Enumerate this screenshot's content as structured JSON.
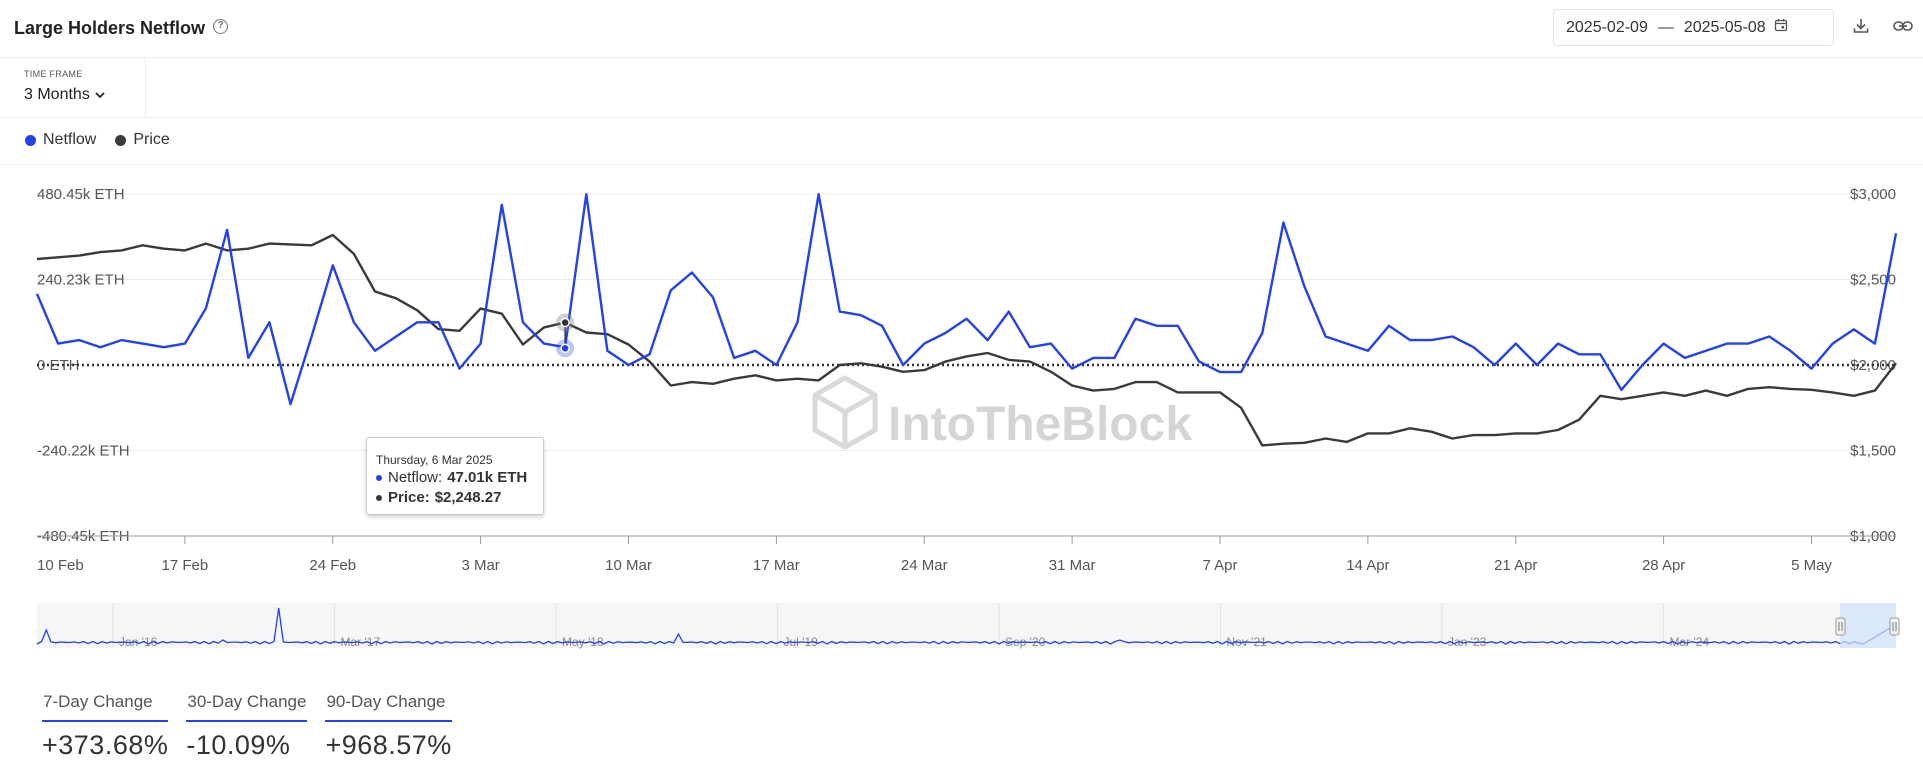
{
  "header": {
    "title": "Large Holders Netflow",
    "help_icon": "help-circle-icon",
    "date_start": "2025-02-09",
    "date_sep": "—",
    "date_end": "2025-05-08",
    "calendar_icon": "calendar-icon",
    "download_icon": "download-icon",
    "link_icon": "link-icon"
  },
  "timeframe": {
    "label": "TIME FRAME",
    "value": "3 Months"
  },
  "legend": [
    {
      "name": "Netflow",
      "color": "#2342ea"
    },
    {
      "name": "Price",
      "color": "#3a3a3a"
    }
  ],
  "tooltip": {
    "date": "Thursday, 6 Mar 2025",
    "netflow_label": "Netflow:",
    "netflow_value": "47.01k ETH",
    "price_label": "Price:",
    "price_value": "$2,248.27"
  },
  "watermark": "IntoTheBlock",
  "chart_data": {
    "type": "line",
    "left_axis": {
      "ticks": [
        480.45,
        240.23,
        0,
        -240.22,
        -480.45
      ],
      "labels": [
        "480.45k ETH",
        "240.23k ETH",
        "0 ETH",
        "-240.22k ETH",
        "-480.45k ETH"
      ],
      "range": [
        -480.45,
        480.45
      ]
    },
    "right_axis": {
      "ticks": [
        3000,
        2500,
        2000,
        1500,
        1000
      ],
      "labels": [
        "$3,000",
        "$2,500",
        "$2,000",
        "$1,500",
        "$1,000"
      ],
      "range": [
        1000,
        3000
      ]
    },
    "x_ticks": [
      "10 Feb",
      "17 Feb",
      "24 Feb",
      "3 Mar",
      "10 Mar",
      "17 Mar",
      "24 Mar",
      "31 Mar",
      "7 Apr",
      "14 Apr",
      "21 Apr",
      "28 Apr",
      "5 May"
    ],
    "x_start": "2025-02-10",
    "series": [
      {
        "name": "Netflow",
        "color": "#2342ea",
        "unit": "k ETH",
        "values": [
          200,
          60,
          70,
          50,
          70,
          60,
          50,
          60,
          160,
          380,
          20,
          120,
          -110,
          80,
          280,
          120,
          40,
          80,
          120,
          120,
          -10,
          60,
          450,
          120,
          60,
          50,
          480,
          40,
          0,
          30,
          210,
          260,
          190,
          20,
          40,
          0,
          120,
          480,
          150,
          140,
          110,
          0,
          60,
          90,
          130,
          70,
          150,
          50,
          60,
          -10,
          20,
          20,
          130,
          110,
          110,
          10,
          -20,
          -20,
          90,
          400,
          220,
          80,
          60,
          40,
          110,
          70,
          70,
          80,
          50,
          0,
          60,
          0,
          60,
          30,
          30,
          -70,
          0,
          60,
          20,
          40,
          60,
          60,
          80,
          40,
          -10,
          60,
          100,
          60,
          370
        ]
      },
      {
        "name": "Price",
        "color": "#3a3a3a",
        "unit": "USD",
        "values": [
          2620,
          2630,
          2640,
          2660,
          2670,
          2700,
          2680,
          2670,
          2710,
          2670,
          2680,
          2710,
          2705,
          2700,
          2760,
          2650,
          2430,
          2390,
          2320,
          2210,
          2200,
          2330,
          2300,
          2120,
          2220,
          2248,
          2190,
          2180,
          2120,
          2020,
          1880,
          1900,
          1890,
          1920,
          1940,
          1910,
          1920,
          1910,
          2000,
          2010,
          1990,
          1960,
          1970,
          2020,
          2050,
          2070,
          2030,
          2020,
          1960,
          1880,
          1850,
          1860,
          1900,
          1900,
          1840,
          1840,
          1840,
          1750,
          1530,
          1540,
          1545,
          1570,
          1550,
          1600,
          1600,
          1630,
          1610,
          1570,
          1590,
          1590,
          1600,
          1600,
          1620,
          1680,
          1820,
          1800,
          1820,
          1840,
          1820,
          1850,
          1820,
          1860,
          1870,
          1860,
          1855,
          1840,
          1820,
          1850,
          2010
        ]
      }
    ],
    "highlight": {
      "date": "Thursday, 6 Mar 2025",
      "index": 25,
      "netflow": 47.01,
      "price": 2248.27
    },
    "navigator": {
      "labels": [
        "Jan '16",
        "Mar '17",
        "May '18",
        "Jul '19",
        "Sep '20",
        "Nov '21",
        "Jan '23",
        "Mar '24"
      ]
    }
  },
  "changes": [
    {
      "label": "7-Day Change",
      "value": "+373.68%"
    },
    {
      "label": "30-Day Change",
      "value": "-10.09%"
    },
    {
      "label": "90-Day Change",
      "value": "+968.57%"
    }
  ]
}
